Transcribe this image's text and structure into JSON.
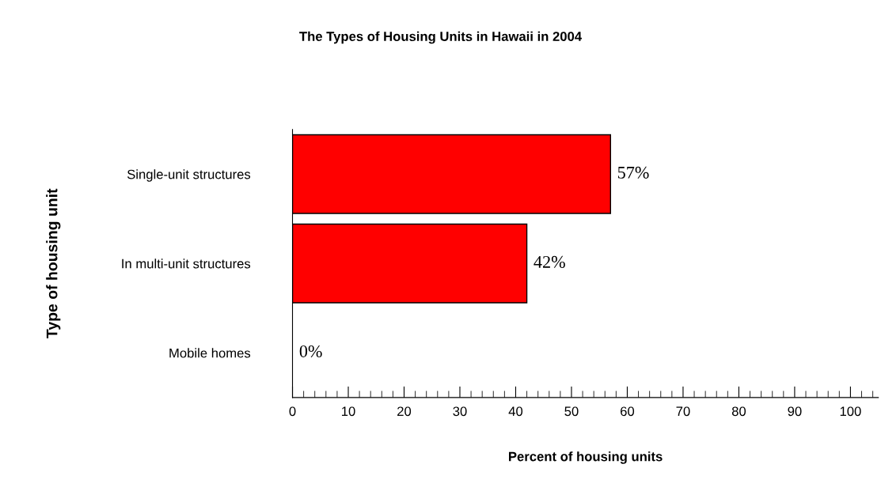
{
  "chart_data": {
    "type": "bar",
    "orientation": "horizontal",
    "title": "The Types of Housing Units in Hawaii in 2004",
    "xlabel": "Percent of housing units",
    "ylabel": "Type of housing unit",
    "categories": [
      "Single-unit structures",
      "In multi-unit structures",
      "Mobile homes"
    ],
    "values": [
      57,
      42,
      0
    ],
    "value_labels": [
      "57%",
      "42%",
      "0%"
    ],
    "color": "#ff0000",
    "xlim": [
      0,
      105
    ],
    "xticks": [
      0,
      10,
      20,
      30,
      40,
      50,
      60,
      70,
      80,
      90,
      100
    ],
    "grid": false,
    "legend": false
  }
}
